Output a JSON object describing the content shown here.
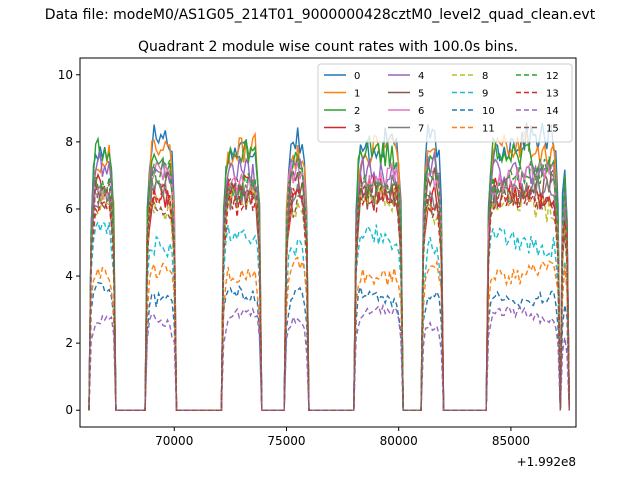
{
  "chart_data": {
    "type": "line",
    "suptitle": "Data file: modeM0/AS1G05_214T01_9000000428cztM0_level2_quad_clean.evt",
    "title": "Quadrant 2 module wise count rates with 100.0s bins.",
    "xlabel": "",
    "ylabel": "",
    "x_offset_label": "+1.992e8",
    "xlim": [
      65800,
      87900
    ],
    "ylim": [
      -0.5,
      10.5
    ],
    "x_ticks": [
      70000,
      75000,
      80000,
      85000
    ],
    "x_tick_labels": [
      "70000",
      "75000",
      "80000",
      "85000"
    ],
    "y_ticks": [
      0,
      2,
      4,
      6,
      8,
      10
    ],
    "y_tick_labels": [
      "0",
      "2",
      "4",
      "6",
      "8",
      "10"
    ],
    "grid": false,
    "legend_location": "top-right",
    "legend_columns": 4,
    "bin_seconds": 100,
    "active_intervals": [
      [
        66300,
        67300
      ],
      [
        68800,
        70000
      ],
      [
        72200,
        73800
      ],
      [
        75000,
        75900
      ],
      [
        78100,
        80100
      ],
      [
        81100,
        81900
      ],
      [
        84000,
        87100
      ],
      [
        87300,
        87500
      ]
    ],
    "series": [
      {
        "name": "0",
        "color": "#1f77b4",
        "dash": "solid",
        "level": 7.9
      },
      {
        "name": "1",
        "color": "#ff7f0e",
        "dash": "solid",
        "level": 7.6
      },
      {
        "name": "2",
        "color": "#2ca02c",
        "dash": "solid",
        "level": 7.5
      },
      {
        "name": "3",
        "color": "#d62728",
        "dash": "solid",
        "level": 6.5
      },
      {
        "name": "4",
        "color": "#9467bd",
        "dash": "solid",
        "level": 7.2
      },
      {
        "name": "5",
        "color": "#8c564b",
        "dash": "solid",
        "level": 6.6
      },
      {
        "name": "6",
        "color": "#e377c2",
        "dash": "solid",
        "level": 6.9
      },
      {
        "name": "7",
        "color": "#7f7f7f",
        "dash": "solid",
        "level": 6.4
      },
      {
        "name": "8",
        "color": "#bcbd22",
        "dash": "dashed",
        "level": 6.1
      },
      {
        "name": "9",
        "color": "#17becf",
        "dash": "dashed",
        "level": 5.1
      },
      {
        "name": "10",
        "color": "#1f77b4",
        "dash": "dashed",
        "level": 3.5
      },
      {
        "name": "11",
        "color": "#ff7f0e",
        "dash": "dashed",
        "level": 4.2
      },
      {
        "name": "12",
        "color": "#2ca02c",
        "dash": "dashed",
        "level": 6.9
      },
      {
        "name": "13",
        "color": "#d62728",
        "dash": "dashed",
        "level": 6.2
      },
      {
        "name": "14",
        "color": "#9467bd",
        "dash": "dashed",
        "level": 2.7
      },
      {
        "name": "15",
        "color": "#8c564b",
        "dash": "dashed",
        "level": 6.3
      }
    ]
  }
}
